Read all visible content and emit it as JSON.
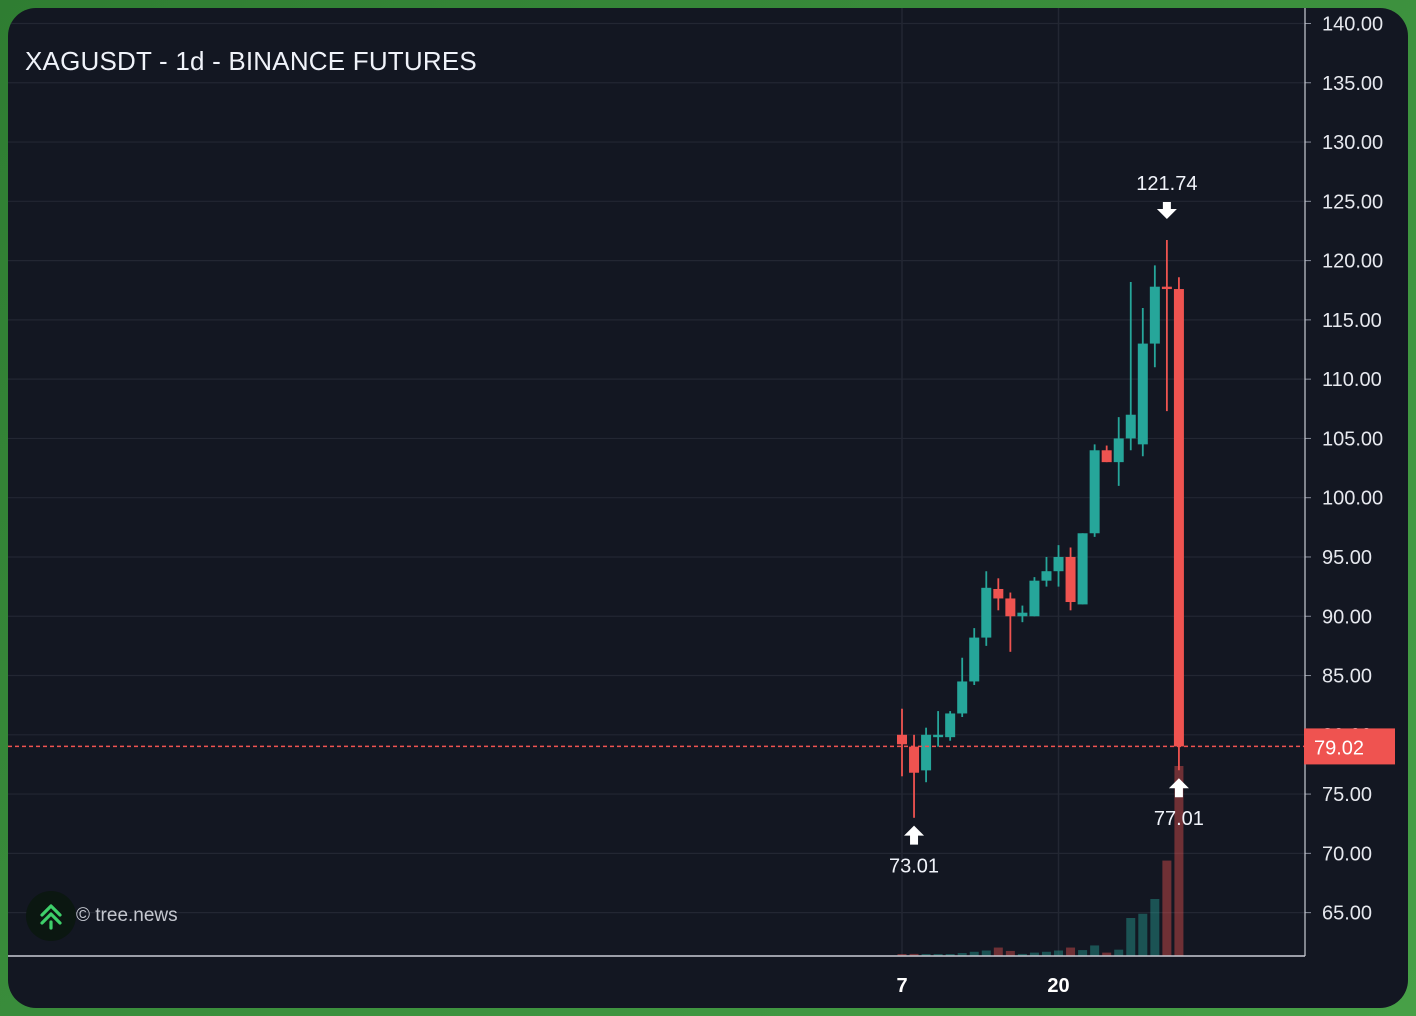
{
  "header": {
    "title": "XAGUSDT - 1d - BINANCE FUTURES"
  },
  "brand": {
    "text": "© tree.news",
    "icon": "double-chevron-up-icon",
    "color": "#3ecf6a"
  },
  "colors": {
    "up": "#26a69a",
    "down": "#ef5350",
    "background": "#131722",
    "grid": "#232733"
  },
  "chart_data": {
    "type": "candlestick",
    "title": "XAGUSDT - 1d - BINANCE FUTURES",
    "ylim": [
      61,
      141
    ],
    "y_ticks": [
      "65.00",
      "70.00",
      "75.00",
      "80.00",
      "85.00",
      "90.00",
      "95.00",
      "100.00",
      "105.00",
      "110.00",
      "115.00",
      "120.00",
      "125.00",
      "130.00",
      "135.00",
      "140.00"
    ],
    "x_tick_labels": [
      {
        "index": 0,
        "label": "7"
      },
      {
        "index": 13,
        "label": "20"
      }
    ],
    "grid": true,
    "last_price": "79.02",
    "annotations": [
      {
        "label": "121.74",
        "index": 22,
        "value": 121.74,
        "kind": "high"
      },
      {
        "label": "73.01",
        "index": 1,
        "value": 73.01,
        "kind": "low"
      },
      {
        "label": "77.01",
        "index": 23,
        "value": 77.01,
        "kind": "low"
      }
    ],
    "candles": [
      {
        "o": 80.0,
        "h": 82.2,
        "l": 76.5,
        "c": 79.2
      },
      {
        "o": 79.0,
        "h": 80.0,
        "l": 73.0,
        "c": 76.8
      },
      {
        "o": 77.0,
        "h": 80.6,
        "l": 76.0,
        "c": 80.0
      },
      {
        "o": 79.8,
        "h": 82.0,
        "l": 79.0,
        "c": 80.0
      },
      {
        "o": 79.8,
        "h": 82.0,
        "l": 79.5,
        "c": 81.8
      },
      {
        "o": 81.8,
        "h": 86.5,
        "l": 81.5,
        "c": 84.5
      },
      {
        "o": 84.5,
        "h": 89.0,
        "l": 84.2,
        "c": 88.2
      },
      {
        "o": 88.2,
        "h": 93.8,
        "l": 87.5,
        "c": 92.4
      },
      {
        "o": 92.3,
        "h": 93.2,
        "l": 90.5,
        "c": 91.5
      },
      {
        "o": 91.5,
        "h": 92.0,
        "l": 87.0,
        "c": 90.0
      },
      {
        "o": 90.0,
        "h": 90.9,
        "l": 89.5,
        "c": 90.3
      },
      {
        "o": 90.0,
        "h": 93.3,
        "l": 90.0,
        "c": 93.0
      },
      {
        "o": 93.0,
        "h": 95.0,
        "l": 92.5,
        "c": 93.8
      },
      {
        "o": 93.8,
        "h": 96.0,
        "l": 92.5,
        "c": 95.0
      },
      {
        "o": 95.0,
        "h": 95.8,
        "l": 90.5,
        "c": 91.2
      },
      {
        "o": 91.0,
        "h": 97.0,
        "l": 91.0,
        "c": 97.0
      },
      {
        "o": 97.0,
        "h": 104.5,
        "l": 96.7,
        "c": 104.0
      },
      {
        "o": 104.0,
        "h": 104.4,
        "l": 103.0,
        "c": 103.0
      },
      {
        "o": 103.0,
        "h": 106.8,
        "l": 101.0,
        "c": 105.0
      },
      {
        "o": 105.0,
        "h": 118.2,
        "l": 104.0,
        "c": 107.0
      },
      {
        "o": 104.5,
        "h": 116.0,
        "l": 103.5,
        "c": 113.0
      },
      {
        "o": 113.0,
        "h": 119.6,
        "l": 111.0,
        "c": 117.8
      },
      {
        "o": 117.8,
        "h": 121.74,
        "l": 107.3,
        "c": 117.6
      },
      {
        "o": 117.6,
        "h": 118.6,
        "l": 77.01,
        "c": 79.02
      }
    ],
    "volume": [
      0.3,
      0.5,
      0.4,
      0.4,
      0.4,
      0.7,
      1.0,
      1.3,
      2.0,
      1.2,
      0.5,
      0.8,
      1.0,
      1.3,
      2.0,
      1.4,
      2.5,
      0.8,
      1.5,
      9.0,
      10.0,
      13.5,
      22.6,
      45.0
    ],
    "volume_max": 45.0
  }
}
